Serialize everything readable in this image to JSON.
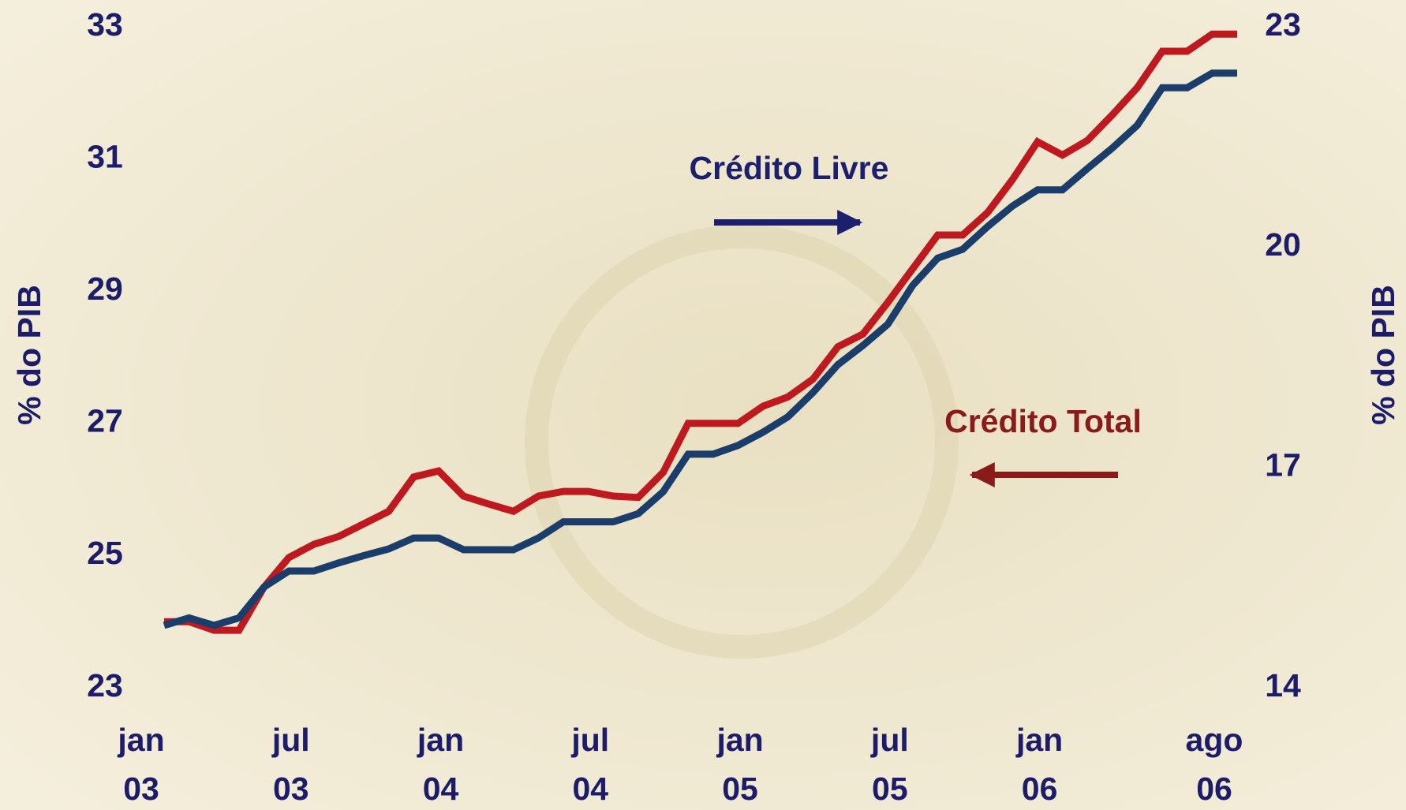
{
  "chart_data": {
    "type": "line",
    "ylabel": "% do PIB",
    "y2label": "% do PIB",
    "categories": [
      "jan 03",
      null,
      null,
      null,
      null,
      null,
      "jul 03",
      null,
      null,
      null,
      null,
      null,
      "jan 04",
      null,
      null,
      null,
      null,
      null,
      "jul 04",
      null,
      null,
      null,
      null,
      null,
      "jan 05",
      null,
      null,
      null,
      null,
      null,
      "jul 05",
      null,
      null,
      null,
      null,
      null,
      "jan 06",
      null,
      null,
      null,
      null,
      null,
      null,
      "ago 06"
    ],
    "ylim": [
      23,
      33
    ],
    "yticks": [
      23,
      25,
      27,
      29,
      31,
      33
    ],
    "y2lim": [
      14,
      23
    ],
    "y2ticks": [
      14,
      17,
      20,
      23
    ],
    "series": [
      {
        "name": "Crédito Total",
        "color": "#c0181f",
        "values": [
          24.0,
          24.0,
          23.87,
          23.87,
          24.52,
          24.97,
          25.17,
          25.29,
          25.48,
          25.67,
          26.19,
          26.28,
          25.9,
          25.78,
          25.67,
          25.9,
          25.97,
          25.97,
          25.9,
          25.88,
          26.26,
          27.0,
          27.0,
          27.0,
          27.26,
          27.4,
          27.67,
          28.16,
          28.35,
          28.83,
          29.34,
          29.85,
          29.85,
          30.19,
          30.69,
          31.26,
          31.06,
          31.28,
          31.67,
          32.08,
          32.63,
          32.63,
          32.89,
          32.89
        ]
      },
      {
        "name": "Crédito Livre",
        "color": "#1a3d6b",
        "axis": "y2",
        "values": [
          14.85,
          14.95,
          14.85,
          14.95,
          15.37,
          15.59,
          15.59,
          15.7,
          15.8,
          15.89,
          16.04,
          16.04,
          15.88,
          15.88,
          15.88,
          16.04,
          16.26,
          16.26,
          16.26,
          16.37,
          16.67,
          17.18,
          17.18,
          17.3,
          17.48,
          17.69,
          18.02,
          18.4,
          18.66,
          18.95,
          19.48,
          19.85,
          19.97,
          20.28,
          20.56,
          20.78,
          20.78,
          21.07,
          21.35,
          21.66,
          22.17,
          22.17,
          22.37,
          22.37
        ]
      }
    ]
  }
}
